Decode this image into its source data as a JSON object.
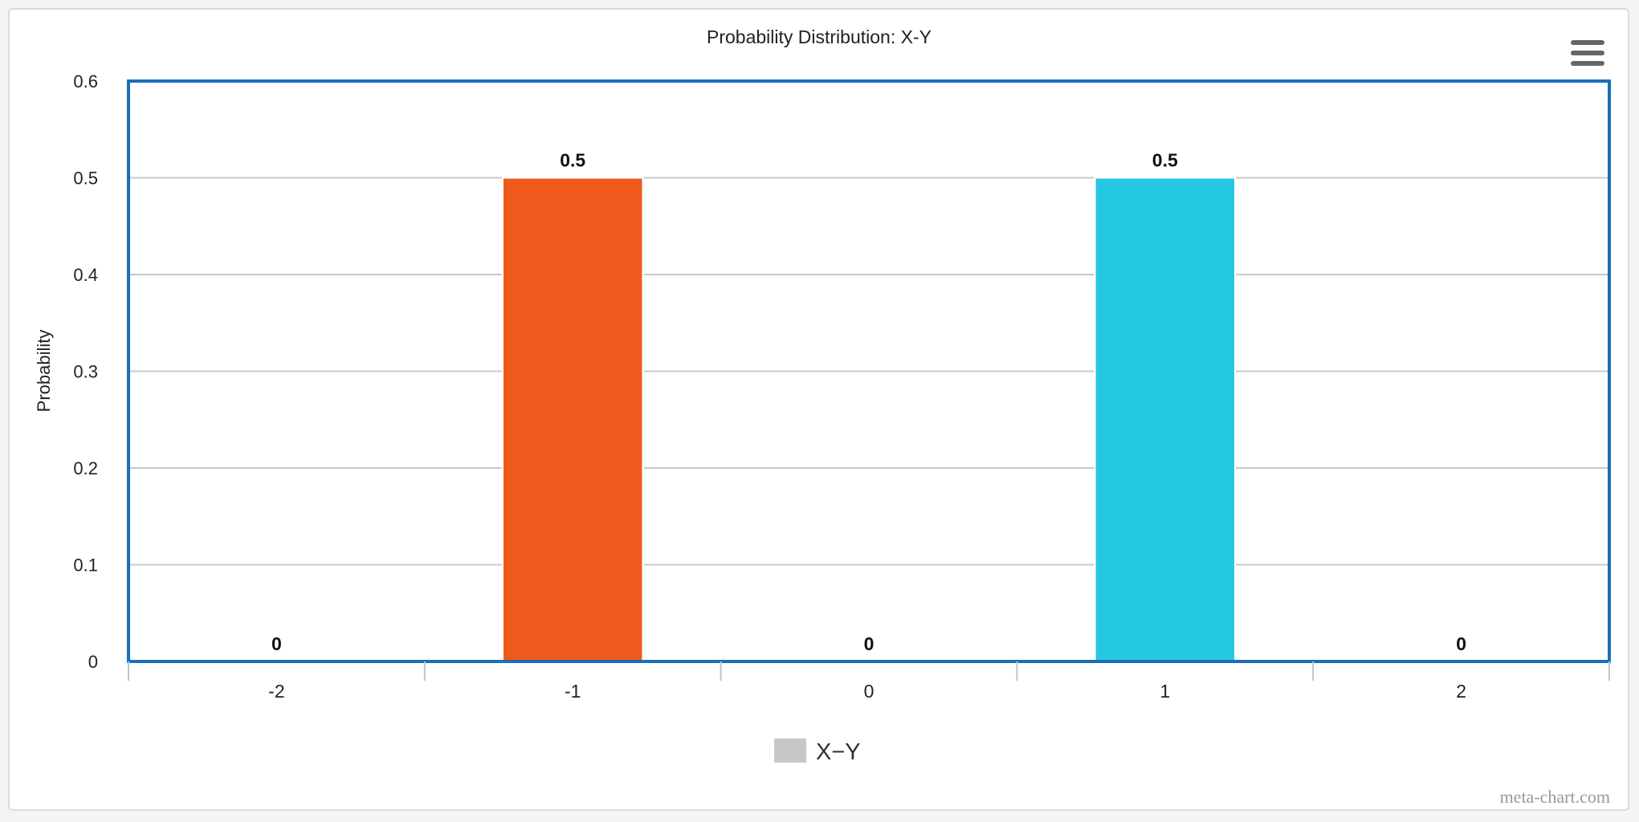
{
  "chart_data": {
    "type": "bar",
    "title": "Probability Distribution: X-Y",
    "xlabel": "",
    "ylabel": "Probability",
    "categories": [
      "-2",
      "-1",
      "0",
      "1",
      "2"
    ],
    "values": [
      0,
      0.5,
      0,
      0.5,
      0
    ],
    "data_labels": [
      "0",
      "0.5",
      "0",
      "0.5",
      "0"
    ],
    "bar_colors": [
      "#ee5a1c",
      "#ee5a1c",
      "#ee5a1c",
      "#24c8e3",
      "#ee5a1c"
    ],
    "ylim": [
      0,
      0.6
    ],
    "yticks": [
      0,
      0.1,
      0.2,
      0.3,
      0.4,
      0.5,
      0.6
    ],
    "ytick_labels": [
      "0",
      "0.1",
      "0.2",
      "0.3",
      "0.4",
      "0.5",
      "0.6"
    ],
    "grid": true,
    "legend": {
      "position": "bottom-center",
      "entries": [
        {
          "name": "X−Y",
          "color": "#c8c8c8"
        }
      ]
    }
  },
  "credit": "meta-chart.com",
  "colors": {
    "plot_border": "#1a6fb8",
    "grid": "#c8c8c8",
    "axis_tick": "#b8c7d6",
    "menu_icon": "#666666"
  },
  "menu_icon": "hamburger-icon"
}
